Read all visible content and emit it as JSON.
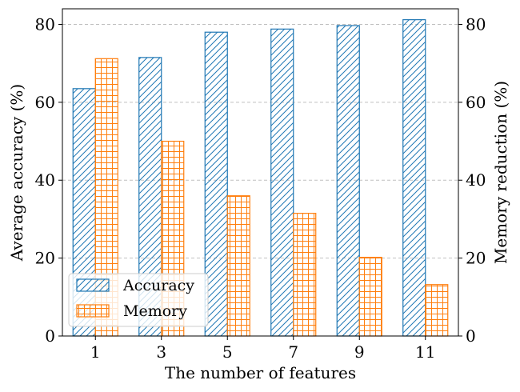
{
  "chart_data": {
    "type": "bar",
    "categories": [
      "1",
      "3",
      "5",
      "7",
      "9",
      "11"
    ],
    "series": [
      {
        "name": "Accuracy",
        "axis": "left",
        "values": [
          63.5,
          71.5,
          78.0,
          78.8,
          79.7,
          81.2
        ],
        "color": "#1f77b4",
        "hatch": "diagonal"
      },
      {
        "name": "Memory",
        "axis": "right",
        "values": [
          71.2,
          50.0,
          36.0,
          31.5,
          20.2,
          13.2
        ],
        "color": "#ff7f0e",
        "hatch": "grid"
      }
    ],
    "xlabel": "The number of features",
    "ylabel": "Average accuracy (%)",
    "ylabel_right": "Memory reduction (%)",
    "ylim": [
      0,
      84
    ],
    "ylim_right": [
      0,
      84
    ],
    "yticks": [
      0,
      20,
      40,
      60,
      80
    ],
    "yticks_right": [
      0,
      20,
      40,
      60,
      80
    ],
    "grid": "horizontal-dashed",
    "legend": "lower-left"
  }
}
